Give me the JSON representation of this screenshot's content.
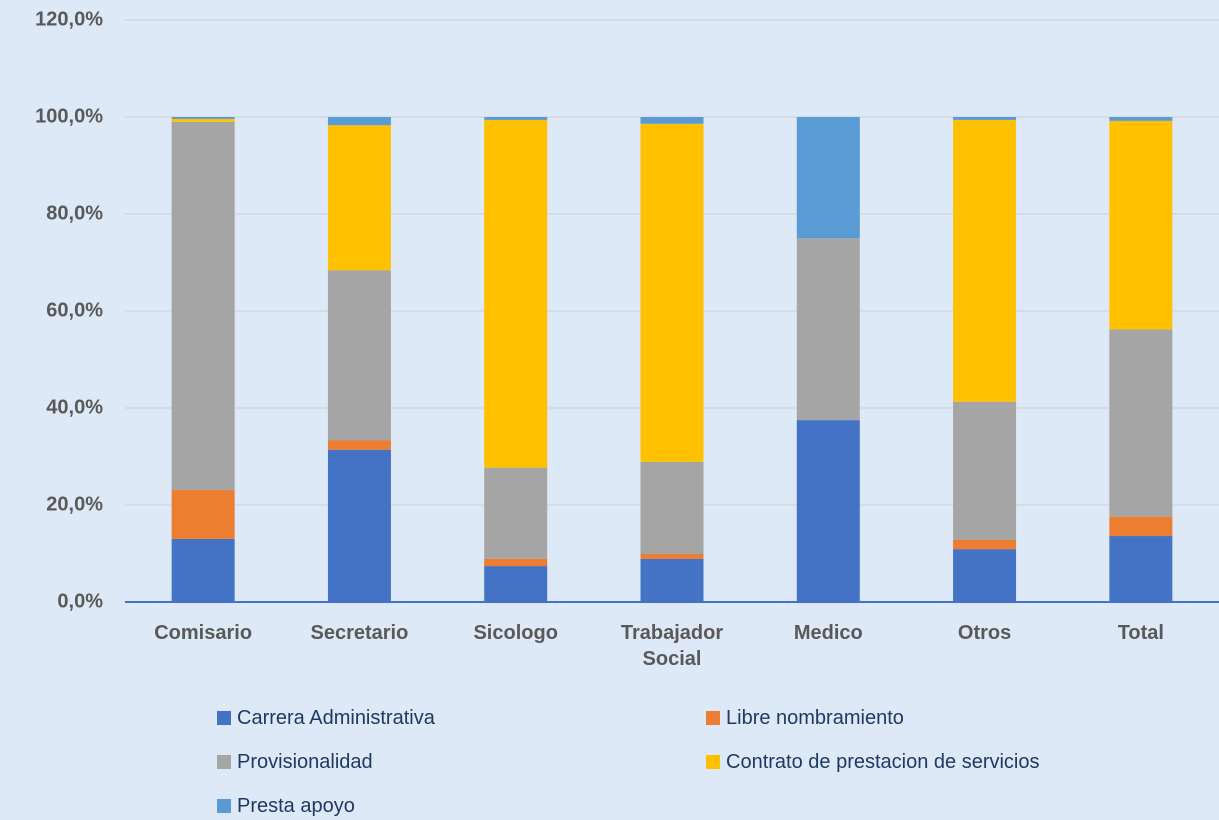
{
  "chart_data": {
    "type": "stacked_bar",
    "categories": [
      "Comisario",
      "Secretario",
      "Sicologo",
      "Trabajador Social",
      "Medico",
      "Otros",
      "Total"
    ],
    "series": [
      {
        "name": "Carrera Administrativa",
        "color": "#4472c4",
        "values": [
          13.0,
          31.4,
          7.4,
          8.9,
          37.5,
          10.9,
          13.6
        ]
      },
      {
        "name": "Libre nombramiento",
        "color": "#ed7d31",
        "values": [
          10.1,
          1.9,
          1.5,
          1.0,
          0,
          1.9,
          4.0
        ]
      },
      {
        "name": "Provisionalidad",
        "color": "#a5a5a5",
        "values": [
          75.9,
          35.1,
          18.8,
          19.0,
          37.5,
          28.5,
          38.6
        ]
      },
      {
        "name": "Contrato de prestacion de servicios",
        "color": "#ffc000",
        "values": [
          0.6,
          29.9,
          71.7,
          69.7,
          0,
          58.1,
          43.0
        ]
      },
      {
        "name": "Presta apoyo",
        "color": "#5b9bd5",
        "values": [
          0.4,
          1.7,
          0.6,
          1.4,
          25.0,
          0.6,
          0.8
        ]
      }
    ],
    "ylim": [
      0,
      120
    ],
    "yticks": [
      {
        "value": 0,
        "label": "0,0%"
      },
      {
        "value": 20,
        "label": "20,0%"
      },
      {
        "value": 40,
        "label": "40,0%"
      },
      {
        "value": 60,
        "label": "60,0%"
      },
      {
        "value": 80,
        "label": "80,0%"
      },
      {
        "value": 100,
        "label": "100,0%"
      },
      {
        "value": 120,
        "label": "120,0%"
      }
    ],
    "grid": true
  }
}
